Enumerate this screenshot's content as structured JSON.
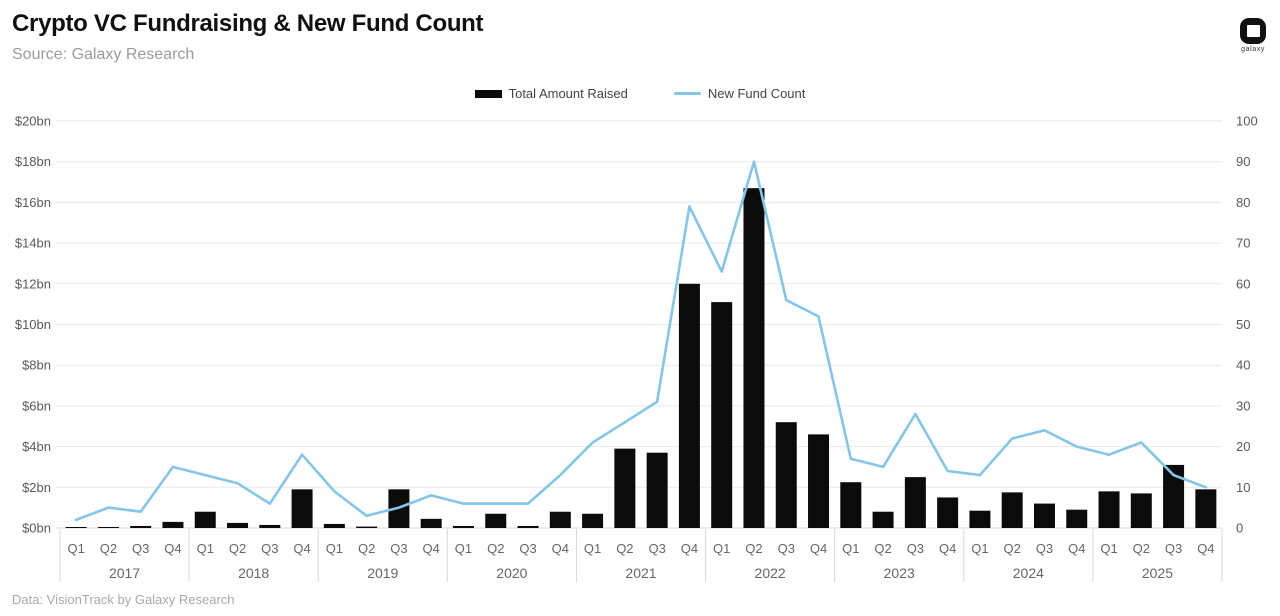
{
  "header": {
    "title": "Crypto VC Fundraising & New Fund Count",
    "subtitle": "Source: Galaxy Research",
    "logo_text": "galaxy"
  },
  "legend": {
    "bar_label": "Total Amount Raised",
    "line_label": "New Fund Count"
  },
  "footer": {
    "note": "Data: VisionTrack by Galaxy Research"
  },
  "chart_data": {
    "type": "bar",
    "title": "Crypto VC Fundraising & New Fund Count",
    "grid": true,
    "legend_position": "top-center",
    "years": [
      "2017",
      "2018",
      "2019",
      "2020",
      "2021",
      "2022",
      "2023",
      "2024",
      "2025"
    ],
    "quarters": [
      "Q1",
      "Q2",
      "Q3",
      "Q4"
    ],
    "left_axis": {
      "unit": "$bn",
      "min": 0,
      "max": 20,
      "tick_labels_bottom_to_top": [
        "$0bn",
        "$2bn",
        "$4bn",
        "$6bn",
        "$8bn",
        "$10bn",
        "$12bn",
        "$14bn",
        "$16bn",
        "$18bn",
        "$20bn"
      ]
    },
    "right_axis": {
      "unit": "funds",
      "min": 0,
      "max": 100,
      "tick_labels_bottom_to_top": [
        "0",
        "10",
        "20",
        "30",
        "40",
        "50",
        "60",
        "70",
        "80",
        "90",
        "100"
      ]
    },
    "series": [
      {
        "name": "Total Amount Raised",
        "render": "bar",
        "axis": "left",
        "unit": "USD bn",
        "color": "#0b0b0b",
        "values": [
          0.05,
          0.05,
          0.1,
          0.3,
          0.8,
          0.25,
          0.15,
          1.9,
          0.2,
          0.07,
          1.9,
          0.45,
          0.1,
          0.7,
          0.1,
          0.8,
          0.7,
          3.9,
          3.7,
          12.0,
          11.1,
          16.7,
          5.2,
          4.6,
          2.25,
          0.8,
          2.5,
          1.5,
          0.85,
          1.75,
          1.2,
          0.9,
          1.8,
          1.7,
          3.1,
          1.9
        ]
      },
      {
        "name": "New Fund Count",
        "render": "line",
        "axis": "right",
        "unit": "count",
        "color": "#84c5e8",
        "values": [
          2,
          5,
          4,
          15,
          13,
          11,
          6,
          18,
          9,
          3,
          5,
          8,
          6,
          6,
          6,
          13,
          21,
          26,
          31,
          79,
          63,
          90,
          56,
          52,
          17,
          15,
          28,
          14,
          13,
          22,
          24,
          20,
          18,
          21,
          13,
          10
        ]
      }
    ],
    "colors": {
      "grid": "#e9e9e9",
      "axis": "#d8d8d8",
      "tick_text": "#5a5a5a",
      "category_text": "#666666"
    }
  }
}
